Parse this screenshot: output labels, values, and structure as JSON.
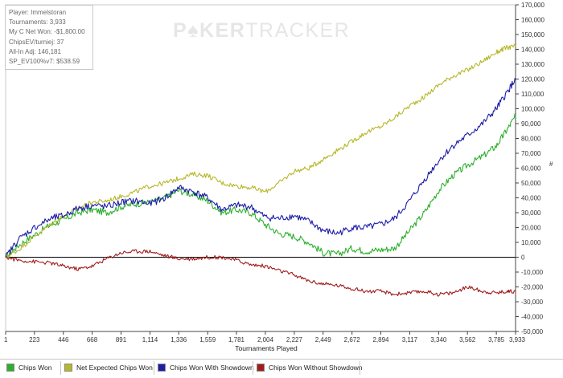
{
  "info": {
    "player": "Player: Immelstoran",
    "tournaments": "Tournaments: 3,933",
    "net_won": "My C Net Won: -$1,800.00",
    "chips_ev": "ChipsEV/turniej: 37",
    "allin_adj": "All-In Adj: 146,181",
    "sp_ev": "SP_EV100%v7: $538.59"
  },
  "watermark": {
    "part1": "P",
    "part2": "KER",
    "part3": "TRACKER"
  },
  "y_unit": "#",
  "colors": {
    "chips_won": "#2bb02b",
    "net_expected": "#b7b72a",
    "with_showdown": "#1d1da8",
    "without_showdown": "#a01c1c",
    "zero_line": "#000000",
    "axis": "#444444"
  },
  "chart_data": {
    "type": "line",
    "title": "",
    "xlabel": "Tournaments Played",
    "ylabel": "",
    "xlim": [
      1,
      3933
    ],
    "ylim": [
      -50000,
      170000
    ],
    "x_ticks": [
      "1",
      "223",
      "446",
      "668",
      "891",
      "1,114",
      "1,336",
      "1,559",
      "1,781",
      "2,004",
      "2,227",
      "2,449",
      "2,672",
      "2,894",
      "3,117",
      "3,340",
      "3,562",
      "3,785",
      "3,933"
    ],
    "y_ticks": [
      "-50,000",
      "-40,000",
      "-30,000",
      "-20,000",
      "-10,000",
      "0",
      "10,000",
      "20,000",
      "30,000",
      "40,000",
      "50,000",
      "60,000",
      "70,000",
      "80,000",
      "90,000",
      "100,000",
      "110,000",
      "120,000",
      "130,000",
      "140,000",
      "150,000",
      "160,000",
      "170,000"
    ],
    "legend": "bottom",
    "grid": false,
    "x": [
      1,
      100,
      223,
      350,
      446,
      560,
      668,
      780,
      891,
      1000,
      1114,
      1230,
      1336,
      1450,
      1559,
      1670,
      1781,
      1890,
      2004,
      2110,
      2227,
      2340,
      2449,
      2560,
      2672,
      2780,
      2894,
      3000,
      3117,
      3230,
      3340,
      3450,
      3562,
      3680,
      3785,
      3860,
      3933
    ],
    "series": [
      {
        "name": "Chips Won",
        "values": [
          0,
          8000,
          15000,
          22000,
          25000,
          30000,
          32000,
          30000,
          34000,
          36000,
          37000,
          40000,
          45000,
          42000,
          38000,
          30000,
          32000,
          30000,
          22000,
          16000,
          14000,
          10000,
          3000,
          2000,
          6000,
          4000,
          5000,
          6000,
          18000,
          30000,
          45000,
          55000,
          62000,
          68000,
          75000,
          85000,
          95000
        ]
      },
      {
        "name": "Net Expected Chips Won",
        "values": [
          0,
          5000,
          14000,
          22000,
          28000,
          33000,
          37000,
          38000,
          41000,
          44000,
          48000,
          50000,
          53000,
          56000,
          55000,
          50000,
          48000,
          47000,
          44000,
          50000,
          58000,
          60000,
          66000,
          72000,
          78000,
          84000,
          88000,
          94000,
          102000,
          108000,
          116000,
          122000,
          126000,
          132000,
          138000,
          141000,
          142000
        ]
      },
      {
        "name": "Chips Won With Showdown",
        "values": [
          0,
          12000,
          20000,
          26000,
          28000,
          33000,
          35000,
          34000,
          37000,
          38000,
          36000,
          40000,
          47000,
          44000,
          40000,
          32000,
          35000,
          34000,
          27000,
          26000,
          28000,
          24000,
          18000,
          16000,
          20000,
          20000,
          22000,
          26000,
          38000,
          52000,
          65000,
          75000,
          82000,
          90000,
          100000,
          110000,
          120000
        ]
      },
      {
        "name": "Chips Won Without Showdown",
        "values": [
          0,
          -2000,
          -3000,
          -4000,
          -6000,
          -8000,
          -6000,
          -1000,
          3000,
          4000,
          4000,
          1000,
          -1000,
          -1000,
          0,
          0,
          -2000,
          -5000,
          -6000,
          -9000,
          -12000,
          -16000,
          -18000,
          -19000,
          -21000,
          -23000,
          -23000,
          -25000,
          -24000,
          -23000,
          -25000,
          -24000,
          -20000,
          -23000,
          -24000,
          -23000,
          -23000
        ]
      }
    ]
  },
  "legend": {
    "items": [
      "Chips Won",
      "Net Expected Chips Won",
      "Chips Won With Showdown",
      "Chips Won Without Showdown"
    ]
  }
}
